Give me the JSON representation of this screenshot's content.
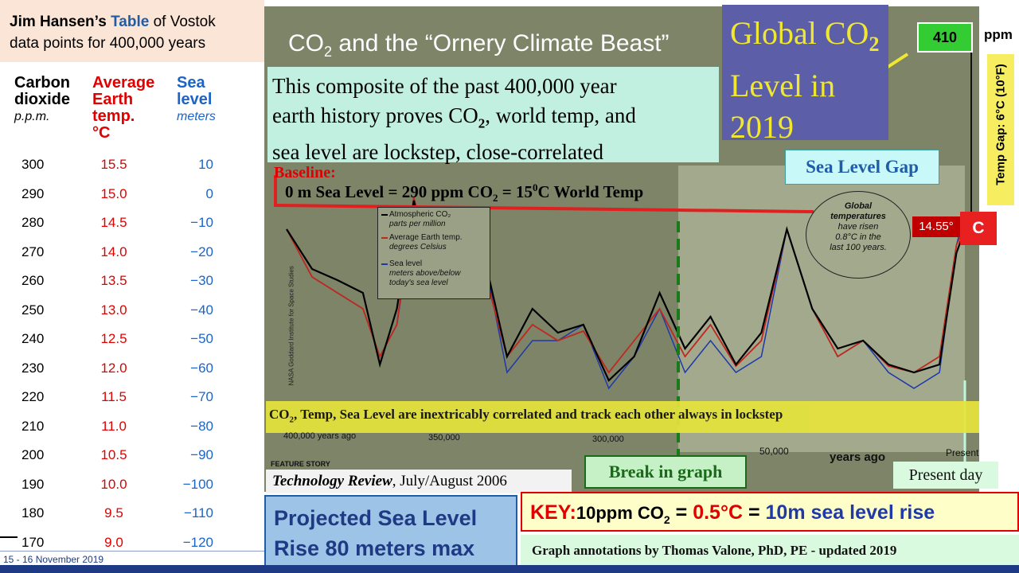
{
  "title_box": {
    "author": "Jim Hansen’s",
    "table_word": "Table",
    "rest_line1": "of Vostok",
    "line2": "data points for 400,000 years"
  },
  "table": {
    "headers": [
      {
        "name": "Carbon dioxide",
        "unit": "p.p.m."
      },
      {
        "name": "Average Earth temp.",
        "unit": "°C"
      },
      {
        "name": "Sea level",
        "unit": "meters"
      }
    ],
    "rows": [
      [
        "300",
        "15.5",
        "10"
      ],
      [
        "290",
        "15.0",
        "0"
      ],
      [
        "280",
        "14.5",
        "−10"
      ],
      [
        "270",
        "14.0",
        "−20"
      ],
      [
        "260",
        "13.5",
        "−30"
      ],
      [
        "250",
        "13.0",
        "−40"
      ],
      [
        "240",
        "12.5",
        "−50"
      ],
      [
        "230",
        "12.0",
        "−60"
      ],
      [
        "220",
        "11.5",
        "−70"
      ],
      [
        "210",
        "11.0",
        "−80"
      ],
      [
        "200",
        "10.5",
        "−90"
      ],
      [
        "190",
        "10.0",
        "−100"
      ],
      [
        "180",
        "9.5",
        "−110"
      ],
      [
        "170",
        "9.0",
        "−120"
      ]
    ]
  },
  "footer_date": "15 - 16 November 2019",
  "chart_title": {
    "prefix": "CO",
    "sub": "2",
    "suffix": " and the “Ornery Climate Beast”"
  },
  "composite_note": [
    "This composite of the past 400,000 year",
    "earth history proves CO",
    "2",
    ", world temp, and",
    "sea level are lockstep, close-correlated"
  ],
  "global_co2": {
    "line1": "Global CO",
    "sub": "2",
    "line2": "Level in",
    "line3": "2019"
  },
  "co2_value": "410",
  "ppm_label": "ppm",
  "temp_gap_label": "Temp Gap: 6°C (10°F)",
  "sea_level_gap": "Sea Level Gap",
  "baseline_label": "Baseline:",
  "baseline_text": "0 m Sea Level = 290 ppm CO",
  "baseline_sub": "2",
  "baseline_rest": " = 15",
  "baseline_sup": "0",
  "baseline_end": "C World Temp",
  "temp_value": "14.55°",
  "temp_c": "C",
  "legend": {
    "co2": "Atmospheric CO₂",
    "co2_sub": "parts per million",
    "temp": "Average Earth temp.",
    "temp_sub": "degrees Celsius",
    "sea": "Sea level",
    "sea_sub1": "meters above/below",
    "sea_sub2": "today's sea level"
  },
  "global_temps_note": [
    "Global",
    "temperatures",
    "have risen",
    "0.8°C in the",
    "last 100 years."
  ],
  "nasa_credit": "NASA Goddard Institute for Space Studies",
  "correlated_banner": {
    "pre": "CO",
    "sub": "2",
    "post": ", Temp, Sea Level are inextricably  correlated and track each other always in lockstep"
  },
  "x_ticks": [
    "400,000 years ago",
    "350,000",
    "300,000",
    "50,000",
    "years ago",
    "Present"
  ],
  "feature_story": "FEATURE STORY",
  "break_label": "Break in graph",
  "tech_review": {
    "italic": "Technology Review",
    "rest": ", July/August 2006"
  },
  "present_day": "Present day",
  "projected": [
    "Projected Sea Level",
    "Rise 80 meters max"
  ],
  "key": {
    "k": "KEY:",
    "a": "10ppm CO",
    "sub": "2",
    "eq1": " = ",
    "b": "0.5°C",
    "eq2": " = ",
    "c": "10m sea level rise"
  },
  "annotations_credit": "Graph  annotations by Thomas Valone, PhD, PE  -  updated 2019",
  "colors": {
    "co2": "#000000",
    "temp": "#c0281e",
    "sea": "#1f3aa8",
    "highlight": "#f0e830"
  },
  "chart_data": {
    "type": "line",
    "x": [
      -400000,
      -385000,
      -370000,
      -355000,
      -345000,
      -335000,
      -325000,
      -315000,
      -300000,
      -285000,
      -270000,
      -255000,
      -240000,
      -225000,
      -210000,
      -195000,
      -180000,
      -165000,
      -150000,
      -135000,
      -120000,
      -105000,
      -90000,
      -75000,
      -60000,
      -45000,
      -30000,
      -15000,
      -5000,
      0
    ],
    "series": [
      {
        "name": "Atmospheric CO₂",
        "values": [
          280,
          255,
          248,
          240,
          195,
          230,
          298,
          250,
          240,
          270,
          200,
          230,
          215,
          220,
          185,
          200,
          240,
          205,
          225,
          195,
          215,
          280,
          230,
          205,
          210,
          195,
          190,
          195,
          265,
          280
        ]
      },
      {
        "name": "Average Earth temp.",
        "values": [
          14.5,
          13.0,
          12.5,
          12.0,
          10.5,
          11.5,
          15.5,
          13.5,
          12.5,
          13.5,
          10.5,
          11.5,
          11.0,
          11.3,
          10.0,
          11.0,
          12.0,
          10.5,
          11.5,
          10.2,
          11.0,
          14.5,
          12.0,
          10.5,
          11.0,
          10.2,
          10.0,
          10.5,
          14.0,
          14.55
        ]
      },
      {
        "name": "Sea level",
        "values": [
          -10,
          -40,
          -50,
          -60,
          -90,
          -70,
          0,
          -30,
          -50,
          -20,
          -100,
          -80,
          -80,
          -70,
          -110,
          -90,
          -60,
          -100,
          -80,
          -100,
          -90,
          -10,
          -60,
          -90,
          -80,
          -100,
          -110,
          -100,
          -20,
          0
        ]
      }
    ],
    "xlabel": "years ago",
    "ylim": [
      170,
      300
    ]
  }
}
